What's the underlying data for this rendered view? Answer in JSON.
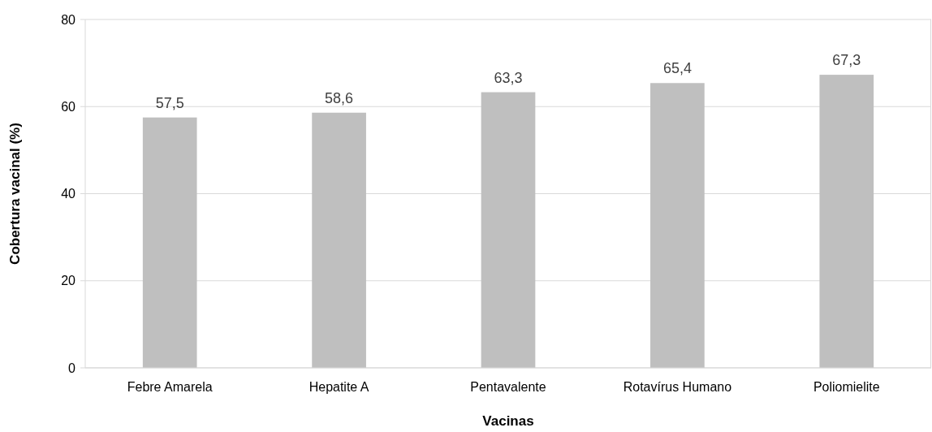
{
  "chart_data": {
    "type": "bar",
    "xlabel": "Vacinas",
    "ylabel": "Cobertura vacinal (%)",
    "categories": [
      "Febre Amarela",
      "Hepatite A",
      "Pentavalente",
      "Rotavírus Humano",
      "Poliomielite"
    ],
    "values": [
      57.5,
      58.6,
      63.3,
      65.4,
      67.3
    ],
    "value_labels": [
      "57,5",
      "58,6",
      "63,3",
      "65,4",
      "67,3"
    ],
    "color": "#bfbfbf",
    "ylim": [
      0,
      80
    ],
    "yticks": [
      0,
      20,
      40,
      60,
      80
    ],
    "grid": "y"
  }
}
